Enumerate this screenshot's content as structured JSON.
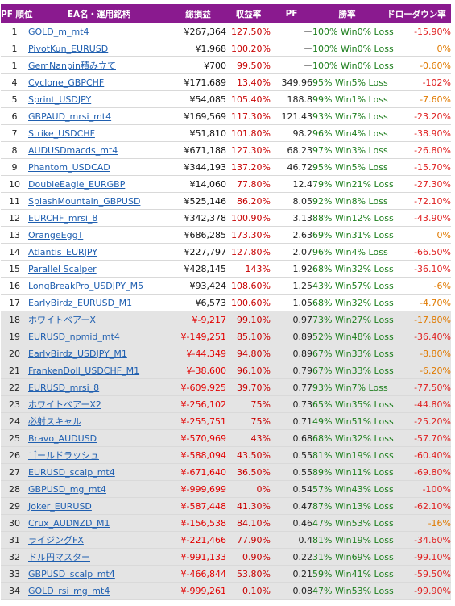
{
  "header": {
    "rank": "PF 順位",
    "name": "EA名・運用銘柄",
    "profit": "総損益",
    "return": "収益率",
    "pf": "PF",
    "win": "勝率",
    "drawdown": "ドローダウン率"
  },
  "rows": [
    {
      "rank": "1",
      "name": "GOLD_m_mt4",
      "profit": "¥267,364",
      "ret": "127.50%",
      "pf": "ー",
      "win": "100% Win0% Loss",
      "dd": "-15.90%"
    },
    {
      "rank": "1",
      "name": "PivotKun_EURUSD",
      "profit": "¥1,968",
      "ret": "100.20%",
      "pf": "ー",
      "win": "100% Win0% Loss",
      "dd": "0%"
    },
    {
      "rank": "1",
      "name": "GemNanpin積み立て",
      "profit": "¥700",
      "ret": "99.50%",
      "pf": "ー",
      "win": "100% Win0% Loss",
      "dd": "-0.60%"
    },
    {
      "rank": "4",
      "name": "Cyclone_GBPCHF",
      "profit": "¥171,689",
      "ret": "13.40%",
      "pf": "349.96",
      "win": "95% Win5% Loss",
      "dd": "-102%"
    },
    {
      "rank": "5",
      "name": "Sprint_USDJPY",
      "profit": "¥54,085",
      "ret": "105.40%",
      "pf": "188.8",
      "win": "99% Win1% Loss",
      "dd": "-7.60%"
    },
    {
      "rank": "6",
      "name": "GBPAUD_mrsi_mt4",
      "profit": "¥169,569",
      "ret": "117.30%",
      "pf": "121.43",
      "win": "93% Win7% Loss",
      "dd": "-23.20%"
    },
    {
      "rank": "7",
      "name": "Strike_USDCHF",
      "profit": "¥51,810",
      "ret": "101.80%",
      "pf": "98.2",
      "win": "96% Win4% Loss",
      "dd": "-38.90%"
    },
    {
      "rank": "8",
      "name": "AUDUSDmacds_mt4",
      "profit": "¥671,188",
      "ret": "127.30%",
      "pf": "68.23",
      "win": "97% Win3% Loss",
      "dd": "-26.80%"
    },
    {
      "rank": "9",
      "name": "Phantom_USDCAD",
      "profit": "¥344,193",
      "ret": "137.20%",
      "pf": "46.72",
      "win": "95% Win5% Loss",
      "dd": "-15.70%"
    },
    {
      "rank": "10",
      "name": "DoubleEagle_EURGBP",
      "profit": "¥14,060",
      "ret": "77.80%",
      "pf": "12.4",
      "win": "79% Win21% Loss",
      "dd": "-27.30%"
    },
    {
      "rank": "11",
      "name": "SplashMountain_GBPUSD",
      "profit": "¥525,146",
      "ret": "86.20%",
      "pf": "8.05",
      "win": "92% Win8% Loss",
      "dd": "-72.10%"
    },
    {
      "rank": "12",
      "name": "EURCHF_mrsi_8",
      "profit": "¥342,378",
      "ret": "100.90%",
      "pf": "3.13",
      "win": "88% Win12% Loss",
      "dd": "-43.90%"
    },
    {
      "rank": "13",
      "name": "OrangeEggT",
      "profit": "¥686,285",
      "ret": "173.30%",
      "pf": "2.63",
      "win": "69% Win31% Loss",
      "dd": "0%"
    },
    {
      "rank": "14",
      "name": "Atlantis_EURJPY",
      "profit": "¥227,797",
      "ret": "127.80%",
      "pf": "2.07",
      "win": "96% Win4% Loss",
      "dd": "-66.50%"
    },
    {
      "rank": "15",
      "name": "Parallel Scalper",
      "profit": "¥428,145",
      "ret": "143%",
      "pf": "1.92",
      "win": "68% Win32% Loss",
      "dd": "-36.10%"
    },
    {
      "rank": "16",
      "name": "LongBreakPro_USDJPY_M5",
      "profit": "¥93,424",
      "ret": "108.60%",
      "pf": "1.25",
      "win": "43% Win57% Loss",
      "dd": "-6%"
    },
    {
      "rank": "17",
      "name": "EarlyBirdz_EURUSD_M1",
      "profit": "¥6,573",
      "ret": "100.60%",
      "pf": "1.05",
      "win": "68% Win32% Loss",
      "dd": "-4.70%"
    },
    {
      "rank": "18",
      "name": "ホワイトベアーX",
      "profit": "¥-9,217",
      "ret": "99.10%",
      "pf": "0.97",
      "win": "73% Win27% Loss",
      "dd": "-17.80%"
    },
    {
      "rank": "19",
      "name": "EURUSD_npmid_mt4",
      "profit": "¥-149,251",
      "ret": "85.10%",
      "pf": "0.89",
      "win": "52% Win48% Loss",
      "dd": "-36.40%"
    },
    {
      "rank": "20",
      "name": "EarlyBirdz_USDJPY_M1",
      "profit": "¥-44,349",
      "ret": "94.80%",
      "pf": "0.89",
      "win": "67% Win33% Loss",
      "dd": "-8.80%"
    },
    {
      "rank": "21",
      "name": "FrankenDoll_USDCHF_M1",
      "profit": "¥-38,600",
      "ret": "96.10%",
      "pf": "0.79",
      "win": "67% Win33% Loss",
      "dd": "-6.20%"
    },
    {
      "rank": "22",
      "name": "EURUSD_mrsi_8",
      "profit": "¥-609,925",
      "ret": "39.70%",
      "pf": "0.77",
      "win": "93% Win7% Loss",
      "dd": "-77.50%"
    },
    {
      "rank": "23",
      "name": "ホワイトベアーX2",
      "profit": "¥-256,102",
      "ret": "75%",
      "pf": "0.73",
      "win": "65% Win35% Loss",
      "dd": "-44.80%"
    },
    {
      "rank": "24",
      "name": "必射スキャル",
      "profit": "¥-255,751",
      "ret": "75%",
      "pf": "0.71",
      "win": "49% Win51% Loss",
      "dd": "-25.20%"
    },
    {
      "rank": "25",
      "name": "Bravo_AUDUSD",
      "profit": "¥-570,969",
      "ret": "43%",
      "pf": "0.68",
      "win": "68% Win32% Loss",
      "dd": "-57.70%"
    },
    {
      "rank": "26",
      "name": "ゴールドラッシュ",
      "profit": "¥-588,094",
      "ret": "43.50%",
      "pf": "0.55",
      "win": "81% Win19% Loss",
      "dd": "-60.40%"
    },
    {
      "rank": "27",
      "name": "EURUSD_scalp_mt4",
      "profit": "¥-671,640",
      "ret": "36.50%",
      "pf": "0.55",
      "win": "89% Win11% Loss",
      "dd": "-69.80%"
    },
    {
      "rank": "28",
      "name": "GBPUSD_mg_mt4",
      "profit": "¥-999,699",
      "ret": "0%",
      "pf": "0.54",
      "win": "57% Win43% Loss",
      "dd": "-100%"
    },
    {
      "rank": "29",
      "name": "Joker_EURUSD",
      "profit": "¥-587,448",
      "ret": "41.30%",
      "pf": "0.47",
      "win": "87% Win13% Loss",
      "dd": "-62.10%"
    },
    {
      "rank": "30",
      "name": "Crux_AUDNZD_M1",
      "profit": "¥-156,538",
      "ret": "84.10%",
      "pf": "0.46",
      "win": "47% Win53% Loss",
      "dd": "-16%"
    },
    {
      "rank": "31",
      "name": "ライジングFX",
      "profit": "¥-221,466",
      "ret": "77.90%",
      "pf": "0.4",
      "win": "81% Win19% Loss",
      "dd": "-34.60%"
    },
    {
      "rank": "32",
      "name": "ドル円マスター",
      "profit": "¥-991,133",
      "ret": "0.90%",
      "pf": "0.22",
      "win": "31% Win69% Loss",
      "dd": "-99.10%"
    },
    {
      "rank": "33",
      "name": "GBPUSD_scalp_mt4",
      "profit": "¥-466,844",
      "ret": "53.80%",
      "pf": "0.21",
      "win": "59% Win41% Loss",
      "dd": "-59.50%"
    },
    {
      "rank": "34",
      "name": "GOLD_rsi_mg_mt4",
      "profit": "¥-999,261",
      "ret": "0.10%",
      "pf": "0.08",
      "win": "47% Win53% Loss",
      "dd": "-99.90%"
    }
  ]
}
